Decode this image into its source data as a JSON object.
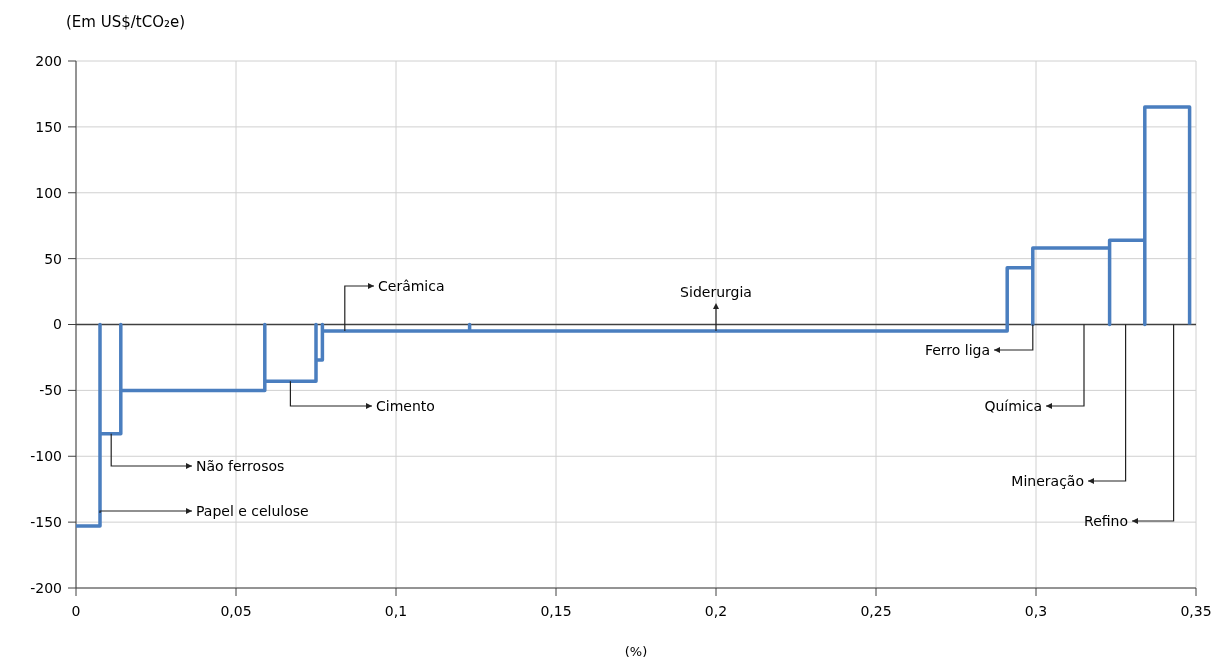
{
  "chart_data": {
    "type": "line",
    "ylabel": "(Em US$/tCO₂e)",
    "xlabel": "(%)",
    "xlim": [
      0,
      0.35
    ],
    "xticks": [
      0,
      {
        "value": 0.05,
        "label": "0,05"
      },
      {
        "value": 0.1,
        "label": "0,1"
      },
      {
        "value": 0.15,
        "label": "0,15"
      },
      {
        "value": 0.2,
        "label": "0,2"
      },
      {
        "value": 0.25,
        "label": "0,25"
      },
      {
        "value": 0.3,
        "label": "0,3"
      },
      {
        "value": 0.35,
        "label": "0,35"
      }
    ],
    "ylim": [
      -200,
      200
    ],
    "yticks": [
      -200,
      -150,
      -100,
      -50,
      0,
      50,
      100,
      150,
      200
    ],
    "grid": true,
    "marker": "none",
    "line_style": "solid",
    "ref_lines": [
      {
        "axis": "y",
        "value": 0,
        "color": "#404040"
      }
    ],
    "series": [
      {
        "color": "#4a7ebf",
        "x": [
          0,
          0.0075,
          0.0075,
          0.0075,
          0.014,
          0.014,
          0.014,
          0.059,
          0.059,
          0.059,
          0.075,
          0.075,
          0.075,
          0.077,
          0.077,
          0.077,
          0.123,
          0.123,
          0.123,
          0.291,
          0.291,
          0.299,
          0.299,
          0.299,
          0.323,
          0.323,
          0.323,
          0.334,
          0.334,
          0.334,
          0.348,
          0.348
        ],
        "values": [
          -153,
          -153,
          0,
          -83,
          -83,
          0,
          -50,
          -50,
          0,
          -43,
          -43,
          0,
          -27,
          -27,
          0,
          -5,
          -5,
          0,
          -5,
          -5,
          43,
          43,
          0,
          58,
          58,
          0,
          64,
          64,
          0,
          165,
          165,
          0
        ]
      }
    ],
    "annotations": [
      {
        "text": "Não ferrosos",
        "x": 0.011,
        "y": -83
      },
      {
        "text": "Papel e celulose",
        "x": 0.0075,
        "y": -143
      },
      {
        "text": "Cimento",
        "x": 0.067,
        "y": -43
      },
      {
        "text": "Cerâmica",
        "x": 0.084,
        "y": -5
      },
      {
        "text": "Siderurgia",
        "x": 0.2,
        "y": -5
      },
      {
        "text": "Ferro liga",
        "x": 0.299,
        "y": 0
      },
      {
        "text": "Química",
        "x": 0.315,
        "y": 0
      },
      {
        "text": "Mineração",
        "x": 0.328,
        "y": 0
      },
      {
        "text": "Refino",
        "x": 0.343,
        "y": 0
      }
    ]
  }
}
